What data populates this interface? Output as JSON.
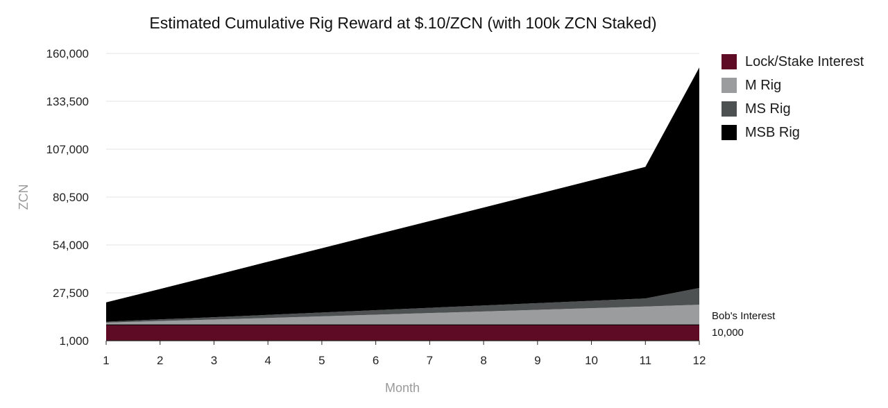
{
  "chart_data": {
    "type": "area",
    "title": "Estimated Cumulative Rig Reward at $.10/ZCN (with 100k ZCN Staked)",
    "xlabel": "Month",
    "ylabel": "ZCN",
    "x": [
      1,
      2,
      3,
      4,
      5,
      6,
      7,
      8,
      9,
      10,
      11,
      12
    ],
    "yticks": [
      "1,000",
      "27,500",
      "54,000",
      "80,500",
      "107,000",
      "133,500",
      "160,000"
    ],
    "ytick_values": [
      1000,
      27500,
      54000,
      80500,
      107000,
      133500,
      160000
    ],
    "ylim": [
      1000,
      160000
    ],
    "stacked": true,
    "grid": true,
    "legend_position": "right",
    "series": [
      {
        "name": "Lock/Stake Interest",
        "color": "#5e0b25",
        "values": [
          10000,
          10000,
          10000,
          10000,
          10000,
          10000,
          10000,
          10000,
          10000,
          10000,
          10000,
          10000
        ]
      },
      {
        "name": "M Rig",
        "color": "#9a9c9e",
        "values": [
          1000,
          1900,
          2700,
          3600,
          4500,
          5400,
          6300,
          7200,
          8100,
          9000,
          9900,
          10900
        ]
      },
      {
        "name": "MS Rig",
        "color": "#4d5152",
        "values": [
          500,
          900,
          1300,
          1700,
          2100,
          2500,
          2900,
          3300,
          3700,
          4100,
          4500,
          9300
        ]
      },
      {
        "name": "MSB Rig",
        "color": "#000000",
        "values": [
          10700,
          16800,
          23100,
          29400,
          35600,
          41800,
          48000,
          54200,
          60400,
          66600,
          72800,
          122000
        ]
      }
    ],
    "annotations": [
      {
        "text": "Bob's Interest",
        "x": 12
      },
      {
        "text": "10,000",
        "x": 12
      }
    ]
  }
}
